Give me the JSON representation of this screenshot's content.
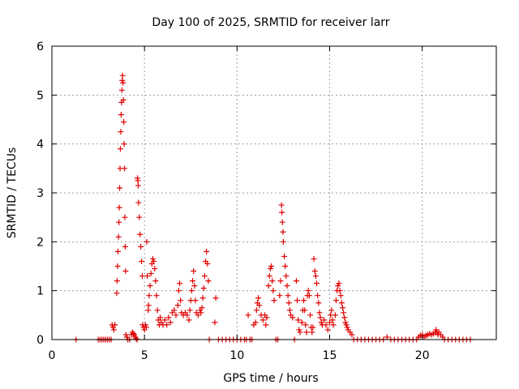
{
  "chart_data": {
    "type": "scatter",
    "title": "Day 100 of 2025, SRMTID for receiver larr",
    "xlabel": "GPS time / hours",
    "ylabel": "SRMTID / TECUs",
    "xlim": [
      0,
      24
    ],
    "ylim": [
      0,
      6
    ],
    "xticks": [
      0,
      5,
      10,
      15,
      20
    ],
    "yticks": [
      0,
      1,
      2,
      3,
      4,
      5,
      6
    ],
    "grid": true,
    "marker": "+",
    "color": "#e00000",
    "series": [
      {
        "name": "SRMTID",
        "points": [
          [
            1.3,
            0
          ],
          [
            2.5,
            0
          ],
          [
            2.6,
            0
          ],
          [
            2.7,
            0
          ],
          [
            2.8,
            0
          ],
          [
            2.9,
            0
          ],
          [
            3.0,
            0
          ],
          [
            3.1,
            0
          ],
          [
            3.2,
            0
          ],
          [
            3.25,
            0.3
          ],
          [
            3.3,
            0.25
          ],
          [
            3.35,
            0.2
          ],
          [
            3.4,
            0.3
          ],
          [
            3.5,
            0.95
          ],
          [
            3.52,
            1.2
          ],
          [
            3.55,
            1.5
          ],
          [
            3.57,
            1.8
          ],
          [
            3.6,
            2.1
          ],
          [
            3.62,
            2.4
          ],
          [
            3.64,
            2.7
          ],
          [
            3.66,
            3.1
          ],
          [
            3.68,
            3.5
          ],
          [
            3.7,
            3.9
          ],
          [
            3.72,
            4.25
          ],
          [
            3.74,
            4.6
          ],
          [
            3.76,
            4.85
          ],
          [
            3.78,
            5.1
          ],
          [
            3.8,
            5.3
          ],
          [
            3.82,
            5.4
          ],
          [
            3.84,
            5.25
          ],
          [
            3.86,
            4.9
          ],
          [
            3.88,
            4.45
          ],
          [
            3.9,
            4.0
          ],
          [
            3.92,
            3.5
          ],
          [
            3.94,
            2.5
          ],
          [
            3.96,
            1.9
          ],
          [
            3.98,
            1.4
          ],
          [
            4.0,
            0.1
          ],
          [
            4.05,
            0.05
          ],
          [
            4.1,
            0
          ],
          [
            4.2,
            0
          ],
          [
            4.3,
            0.1
          ],
          [
            4.35,
            0.15
          ],
          [
            4.4,
            0.12
          ],
          [
            4.45,
            0.1
          ],
          [
            4.5,
            0.05
          ],
          [
            4.55,
            0.02
          ],
          [
            4.6,
            0
          ],
          [
            4.62,
            3.3
          ],
          [
            4.64,
            3.25
          ],
          [
            4.66,
            3.15
          ],
          [
            4.68,
            2.8
          ],
          [
            4.72,
            2.5
          ],
          [
            4.76,
            2.15
          ],
          [
            4.8,
            1.9
          ],
          [
            4.84,
            1.6
          ],
          [
            4.88,
            1.3
          ],
          [
            4.9,
            0.3
          ],
          [
            4.95,
            0.25
          ],
          [
            5.0,
            0.2
          ],
          [
            5.05,
            0.3
          ],
          [
            5.1,
            0.25
          ],
          [
            5.12,
            2.0
          ],
          [
            5.15,
            1.3
          ],
          [
            5.2,
            0.6
          ],
          [
            5.22,
            0.7
          ],
          [
            5.25,
            0.9
          ],
          [
            5.3,
            1.1
          ],
          [
            5.35,
            1.35
          ],
          [
            5.4,
            1.55
          ],
          [
            5.45,
            1.65
          ],
          [
            5.5,
            1.6
          ],
          [
            5.55,
            1.45
          ],
          [
            5.6,
            1.2
          ],
          [
            5.65,
            0.9
          ],
          [
            5.7,
            0.6
          ],
          [
            5.75,
            0.4
          ],
          [
            5.8,
            0.3
          ],
          [
            5.85,
            0.45
          ],
          [
            5.9,
            0.35
          ],
          [
            6.0,
            0.3
          ],
          [
            6.1,
            0.4
          ],
          [
            6.2,
            0.3
          ],
          [
            6.3,
            0.45
          ],
          [
            6.4,
            0.35
          ],
          [
            6.5,
            0.55
          ],
          [
            6.6,
            0.6
          ],
          [
            6.7,
            0.5
          ],
          [
            6.8,
            0.7
          ],
          [
            6.85,
            1.0
          ],
          [
            6.9,
            1.15
          ],
          [
            6.95,
            0.8
          ],
          [
            7.0,
            0.55
          ],
          [
            7.1,
            0.5
          ],
          [
            7.2,
            0.55
          ],
          [
            7.3,
            0.5
          ],
          [
            7.4,
            0.4
          ],
          [
            7.45,
            0.6
          ],
          [
            7.5,
            0.8
          ],
          [
            7.55,
            1.0
          ],
          [
            7.6,
            1.2
          ],
          [
            7.65,
            1.4
          ],
          [
            7.7,
            1.1
          ],
          [
            7.75,
            0.8
          ],
          [
            7.8,
            0.55
          ],
          [
            7.9,
            0.5
          ],
          [
            8.0,
            0.6
          ],
          [
            8.05,
            0.55
          ],
          [
            8.1,
            0.65
          ],
          [
            8.15,
            0.85
          ],
          [
            8.2,
            1.05
          ],
          [
            8.25,
            1.3
          ],
          [
            8.3,
            1.6
          ],
          [
            8.35,
            1.8
          ],
          [
            8.4,
            1.55
          ],
          [
            8.45,
            1.2
          ],
          [
            8.5,
            0
          ],
          [
            8.8,
            0.35
          ],
          [
            8.85,
            0.85
          ],
          [
            9.0,
            0
          ],
          [
            9.2,
            0
          ],
          [
            9.4,
            0
          ],
          [
            9.6,
            0
          ],
          [
            9.8,
            0
          ],
          [
            10.0,
            0
          ],
          [
            10.2,
            0
          ],
          [
            10.4,
            0
          ],
          [
            10.5,
            0
          ],
          [
            10.6,
            0.5
          ],
          [
            10.7,
            0
          ],
          [
            10.8,
            0
          ],
          [
            10.9,
            0.3
          ],
          [
            11.0,
            0.35
          ],
          [
            11.05,
            0.6
          ],
          [
            11.1,
            0.75
          ],
          [
            11.15,
            0.85
          ],
          [
            11.2,
            0.7
          ],
          [
            11.3,
            0.5
          ],
          [
            11.4,
            0.4
          ],
          [
            11.5,
            0.5
          ],
          [
            11.55,
            0.3
          ],
          [
            11.6,
            0.45
          ],
          [
            11.7,
            1.1
          ],
          [
            11.75,
            1.3
          ],
          [
            11.8,
            1.45
          ],
          [
            11.85,
            1.5
          ],
          [
            11.9,
            1.2
          ],
          [
            11.95,
            1.0
          ],
          [
            12.0,
            0.8
          ],
          [
            12.1,
            0
          ],
          [
            12.2,
            0
          ],
          [
            12.3,
            0.9
          ],
          [
            12.35,
            1.2
          ],
          [
            12.4,
            2.75
          ],
          [
            12.42,
            2.6
          ],
          [
            12.45,
            2.4
          ],
          [
            12.48,
            2.2
          ],
          [
            12.5,
            2.0
          ],
          [
            12.55,
            1.7
          ],
          [
            12.6,
            1.5
          ],
          [
            12.65,
            1.3
          ],
          [
            12.7,
            1.1
          ],
          [
            12.75,
            0.9
          ],
          [
            12.8,
            0.75
          ],
          [
            12.85,
            0.6
          ],
          [
            12.9,
            0.5
          ],
          [
            13.0,
            0.45
          ],
          [
            13.1,
            0
          ],
          [
            13.2,
            1.2
          ],
          [
            13.25,
            0.8
          ],
          [
            13.3,
            0.4
          ],
          [
            13.35,
            0.2
          ],
          [
            13.4,
            0.15
          ],
          [
            13.5,
            0.35
          ],
          [
            13.55,
            0.6
          ],
          [
            13.6,
            0.8
          ],
          [
            13.65,
            0.6
          ],
          [
            13.7,
            0.3
          ],
          [
            13.75,
            0.15
          ],
          [
            13.8,
            0.9
          ],
          [
            13.85,
            1.0
          ],
          [
            13.9,
            0.9
          ],
          [
            13.95,
            0.5
          ],
          [
            14.0,
            0.25
          ],
          [
            14.05,
            0.15
          ],
          [
            14.1,
            0.25
          ],
          [
            14.15,
            1.65
          ],
          [
            14.2,
            1.4
          ],
          [
            14.25,
            1.3
          ],
          [
            14.3,
            1.15
          ],
          [
            14.35,
            0.9
          ],
          [
            14.4,
            0.75
          ],
          [
            14.45,
            0.55
          ],
          [
            14.5,
            0.45
          ],
          [
            14.55,
            0.35
          ],
          [
            14.6,
            0.3
          ],
          [
            14.7,
            0.4
          ],
          [
            14.8,
            0.3
          ],
          [
            14.9,
            0.2
          ],
          [
            15.0,
            0.35
          ],
          [
            15.05,
            0.5
          ],
          [
            15.1,
            0.6
          ],
          [
            15.15,
            0.4
          ],
          [
            15.2,
            0.3
          ],
          [
            15.3,
            0.5
          ],
          [
            15.35,
            0.8
          ],
          [
            15.4,
            1.0
          ],
          [
            15.45,
            1.1
          ],
          [
            15.5,
            1.15
          ],
          [
            15.55,
            1.0
          ],
          [
            15.6,
            0.9
          ],
          [
            15.65,
            0.75
          ],
          [
            15.7,
            0.65
          ],
          [
            15.75,
            0.55
          ],
          [
            15.8,
            0.45
          ],
          [
            15.85,
            0.35
          ],
          [
            15.9,
            0.3
          ],
          [
            15.95,
            0.25
          ],
          [
            16.0,
            0.2
          ],
          [
            16.1,
            0.15
          ],
          [
            16.2,
            0.1
          ],
          [
            16.3,
            0
          ],
          [
            16.5,
            0
          ],
          [
            16.7,
            0
          ],
          [
            16.9,
            0
          ],
          [
            17.1,
            0
          ],
          [
            17.3,
            0
          ],
          [
            17.5,
            0
          ],
          [
            17.7,
            0
          ],
          [
            17.9,
            0
          ],
          [
            18.1,
            0.05
          ],
          [
            18.3,
            0
          ],
          [
            18.5,
            0
          ],
          [
            18.7,
            0
          ],
          [
            18.9,
            0
          ],
          [
            19.1,
            0
          ],
          [
            19.3,
            0
          ],
          [
            19.5,
            0
          ],
          [
            19.7,
            0
          ],
          [
            19.8,
            0.05
          ],
          [
            19.9,
            0.08
          ],
          [
            20.0,
            0.1
          ],
          [
            20.1,
            0.05
          ],
          [
            20.2,
            0.08
          ],
          [
            20.3,
            0.1
          ],
          [
            20.4,
            0.12
          ],
          [
            20.5,
            0.1
          ],
          [
            20.6,
            0.12
          ],
          [
            20.7,
            0.15
          ],
          [
            20.75,
            0.2
          ],
          [
            20.8,
            0.15
          ],
          [
            20.85,
            0.1
          ],
          [
            20.9,
            0.15
          ],
          [
            21.0,
            0.1
          ],
          [
            21.1,
            0.05
          ],
          [
            21.2,
            0
          ],
          [
            21.4,
            0
          ],
          [
            21.6,
            0
          ],
          [
            21.8,
            0
          ],
          [
            22.0,
            0
          ],
          [
            22.2,
            0
          ],
          [
            22.4,
            0
          ],
          [
            22.6,
            0
          ]
        ]
      }
    ]
  }
}
